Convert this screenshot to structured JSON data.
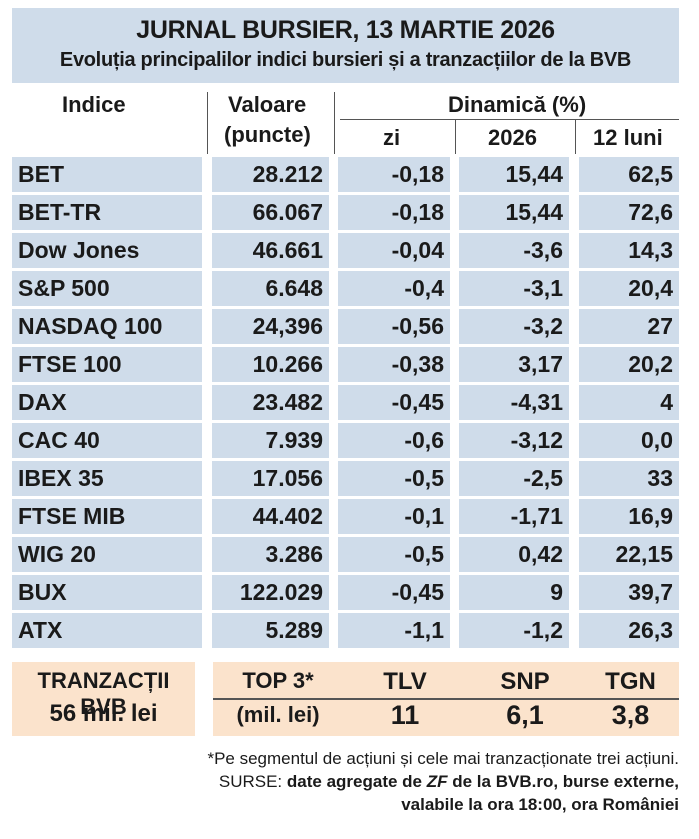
{
  "title": "JURNAL BURSIER, 13 MARTIE 2026",
  "subtitle": "Evoluția principalilor indici bursieri și a tranzacțiilor de la BVB",
  "headers": {
    "indice": "Indice",
    "valoare_1": "Valoare",
    "valoare_2": "(puncte)",
    "dinamica": "Dinamică (%)",
    "zi": "zi",
    "ytd": "2026",
    "m12": "12 luni"
  },
  "rows": [
    {
      "name": "BET",
      "value": "28.212",
      "zi": "-0,18",
      "ytd": "15,44",
      "m12": "62,5"
    },
    {
      "name": "BET-TR",
      "value": "66.067",
      "zi": "-0,18",
      "ytd": "15,44",
      "m12": "72,6"
    },
    {
      "name": "Dow Jones",
      "value": "46.661",
      "zi": "-0,04",
      "ytd": "-3,6",
      "m12": "14,3"
    },
    {
      "name": "S&P 500",
      "value": "6.648",
      "zi": "-0,4",
      "ytd": "-3,1",
      "m12": "20,4"
    },
    {
      "name": "NASDAQ 100",
      "value": "24,396",
      "zi": "-0,56",
      "ytd": "-3,2",
      "m12": "27"
    },
    {
      "name": "FTSE 100",
      "value": "10.266",
      "zi": "-0,38",
      "ytd": "3,17",
      "m12": "20,2"
    },
    {
      "name": "DAX",
      "value": "23.482",
      "zi": "-0,45",
      "ytd": "-4,31",
      "m12": "4"
    },
    {
      "name": "CAC 40",
      "value": "7.939",
      "zi": "-0,6",
      "ytd": "-3,12",
      "m12": "0,0"
    },
    {
      "name": "IBEX 35",
      "value": "17.056",
      "zi": "-0,5",
      "ytd": "-2,5",
      "m12": "33"
    },
    {
      "name": "FTSE MIB",
      "value": "44.402",
      "zi": "-0,1",
      "ytd": "-1,71",
      "m12": "16,9"
    },
    {
      "name": "WIG 20",
      "value": "3.286",
      "zi": "-0,5",
      "ytd": "0,42",
      "m12": "22,15"
    },
    {
      "name": "BUX",
      "value": "122.029",
      "zi": "-0,45",
      "ytd": "9",
      "m12": "39,7"
    },
    {
      "name": "ATX",
      "value": "5.289",
      "zi": "-1,1",
      "ytd": "-1,2",
      "m12": "26,3"
    }
  ],
  "bvb": {
    "label": "TRANZACȚII BVB",
    "total": "56 mil. lei",
    "top_label": "TOP 3*",
    "top_unit": "(mil. lei)",
    "stocks": [
      {
        "symbol": "TLV",
        "amount": "11"
      },
      {
        "symbol": "SNP",
        "amount": "6,1"
      },
      {
        "symbol": "TGN",
        "amount": "3,8"
      }
    ]
  },
  "footnote": "*Pe segmentul de acțiuni și cele mai tranzacționate trei acțiuni.",
  "sources": {
    "label": "SURSE:",
    "text_a": "date agregate de",
    "zf": "ZF",
    "text_b": "de la BVB.ro, burse externe,",
    "line2": "valabile la ora 18:00, ora României"
  }
}
